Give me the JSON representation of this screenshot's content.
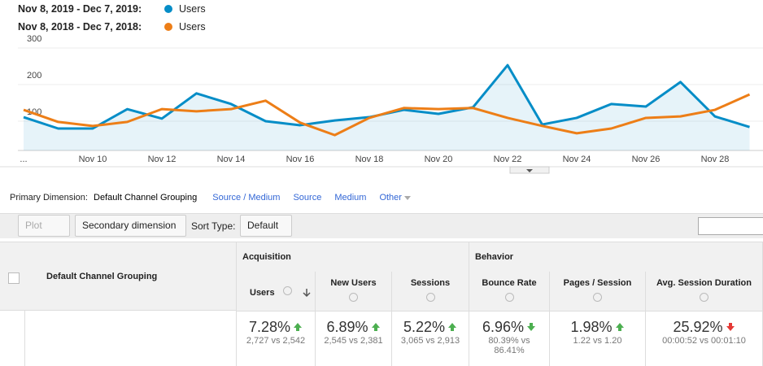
{
  "chart_data": {
    "type": "line",
    "categories": [
      "...",
      null,
      "Nov 10",
      null,
      "Nov 12",
      null,
      "Nov 14",
      null,
      "Nov 16",
      null,
      "Nov 18",
      null,
      "Nov 20",
      null,
      "Nov 22",
      null,
      "Nov 24",
      null,
      "Nov 26",
      null,
      "Nov 28",
      null
    ],
    "series": [
      {
        "name": "Users",
        "period": "Nov 8, 2019 - Dec 7, 2019:",
        "color": "#058dc7",
        "area": true,
        "values": [
          111,
          80,
          80,
          133,
          107,
          176,
          147,
          100,
          89,
          102,
          111,
          131,
          120,
          138,
          253,
          91,
          109,
          147,
          140,
          207,
          113,
          84
        ]
      },
      {
        "name": "Users",
        "period": "Nov 8, 2018 - Dec 7, 2018:",
        "color": "#ed7e17",
        "area": false,
        "values": [
          131,
          98,
          87,
          98,
          133,
          127,
          133,
          156,
          96,
          62,
          109,
          136,
          133,
          136,
          109,
          87,
          67,
          80,
          109,
          113,
          131,
          173
        ]
      }
    ],
    "ylim": [
      20,
      320
    ],
    "yticks": [
      100,
      200,
      300
    ],
    "grid": true
  },
  "dimension_bar": {
    "label": "Primary Dimension:",
    "active": "Default Channel Grouping",
    "options": [
      "Source / Medium",
      "Source",
      "Medium",
      "Other"
    ]
  },
  "toolbar": {
    "plot_rows": "Plot Rows",
    "secondary": "Secondary dimension",
    "sort_label": "Sort Type:",
    "sort_value": "Default"
  },
  "table": {
    "dimension_header": "Default Channel Grouping",
    "groups": [
      {
        "name": "Acquisition",
        "columns": [
          {
            "name": "Users",
            "change": "7.28%",
            "trend": "up",
            "trend_color": "#4caf50",
            "comparison": "2,727 vs 2,542"
          },
          {
            "name": "New Users",
            "change": "6.89%",
            "trend": "up",
            "trend_color": "#4caf50",
            "comparison": "2,545 vs 2,381"
          },
          {
            "name": "Sessions",
            "change": "5.22%",
            "trend": "up",
            "trend_color": "#4caf50",
            "comparison": "3,065 vs 2,913"
          }
        ]
      },
      {
        "name": "Behavior",
        "columns": [
          {
            "name": "Bounce Rate",
            "change": "6.96%",
            "trend": "down",
            "trend_color": "#4caf50",
            "comparison": "80.39% vs 86.41%"
          },
          {
            "name": "Pages / Session",
            "change": "1.98%",
            "trend": "up",
            "trend_color": "#4caf50",
            "comparison": "1.22 vs 1.20"
          },
          {
            "name": "Avg. Session Duration",
            "change": "25.92%",
            "trend": "down",
            "trend_color": "#e53935",
            "comparison": "00:00:52 vs 00:01:10"
          }
        ]
      }
    ]
  }
}
